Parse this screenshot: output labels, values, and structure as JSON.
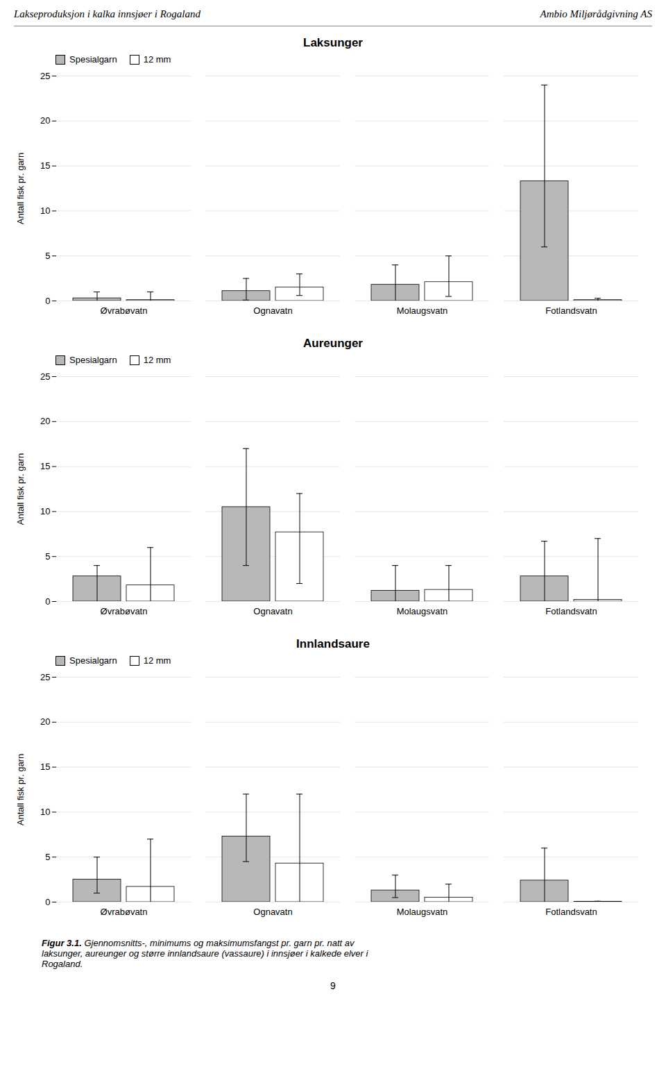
{
  "header_left": "Lakseproduksjon i kalka innsjøer i Rogaland",
  "header_right": "Ambio Miljørådgivning AS",
  "chart_data": [
    {
      "type": "bar",
      "title": "Laksunger",
      "ylabel": "Antall fisk pr. garn",
      "categories": [
        "Øvrabøvatn",
        "Ognavatn",
        "Molaugsvatn",
        "Fotlandsvatn"
      ],
      "series": [
        {
          "name": "Spesialgarn",
          "color": "#b8b8b8",
          "values": [
            0.3,
            1.1,
            1.8,
            13.3
          ],
          "err_low": [
            0.3,
            1.0,
            1.8,
            7.3
          ],
          "err_high": [
            0.7,
            1.4,
            2.2,
            10.7
          ]
        },
        {
          "name": "12 mm",
          "color": "#ffffff",
          "values": [
            0.1,
            1.5,
            2.1,
            0.1
          ],
          "err_low": [
            0.1,
            0.9,
            1.6,
            0.1
          ],
          "err_high": [
            0.9,
            1.5,
            2.9,
            0.2
          ]
        }
      ],
      "ylim": [
        0,
        25
      ],
      "yticks": [
        0,
        5,
        10,
        15,
        20,
        25
      ],
      "grid": true,
      "legend": "upper left"
    },
    {
      "type": "bar",
      "title": "Aureunger",
      "ylabel": "Antall fisk pr. garn",
      "categories": [
        "Øvrabøvatn",
        "Ognavatn",
        "Molaugsvatn",
        "Fotlandsvatn"
      ],
      "series": [
        {
          "name": "Spesialgarn",
          "color": "#b8b8b8",
          "values": [
            2.8,
            10.5,
            1.2,
            2.8
          ],
          "err_low": [
            2.8,
            6.5,
            1.2,
            2.8
          ],
          "err_high": [
            1.2,
            6.5,
            2.8,
            3.9
          ]
        },
        {
          "name": "12 mm",
          "color": "#ffffff",
          "values": [
            1.8,
            7.7,
            1.3,
            0.2
          ],
          "err_low": [
            1.8,
            5.7,
            1.3,
            0.2
          ],
          "err_high": [
            4.2,
            4.3,
            2.7,
            6.8
          ]
        }
      ],
      "ylim": [
        0,
        25
      ],
      "yticks": [
        0,
        5,
        10,
        15,
        20,
        25
      ],
      "grid": true,
      "legend": "upper left"
    },
    {
      "type": "bar",
      "title": "Innlandsaure",
      "ylabel": "Antall fisk pr. garn",
      "categories": [
        "Øvrabøvatn",
        "Ognavatn",
        "Molaugsvatn",
        "Fotlandsvatn"
      ],
      "series": [
        {
          "name": "Spesialgarn",
          "color": "#b8b8b8",
          "values": [
            2.5,
            7.3,
            1.3,
            2.4
          ],
          "err_low": [
            1.5,
            2.8,
            0.8,
            2.4
          ],
          "err_high": [
            2.5,
            4.7,
            1.7,
            3.6
          ]
        },
        {
          "name": "12 mm",
          "color": "#ffffff",
          "values": [
            1.7,
            4.3,
            0.5,
            0.05
          ],
          "err_low": [
            1.7,
            4.3,
            0.5,
            0.05
          ],
          "err_high": [
            5.3,
            7.7,
            1.5,
            0.05
          ]
        }
      ],
      "ylim": [
        0,
        25
      ],
      "yticks": [
        0,
        5,
        10,
        15,
        20,
        25
      ],
      "grid": true,
      "legend": "upper left"
    }
  ],
  "caption_bold": "Figur 3.1.",
  "caption_rest": " Gjennomsnitts-, minimums og maksimumsfangst pr. garn pr. natt av\nlaksunger, aureunger og større innlandsaure (vassaure) i innsjøer i kalkede elver i\nRogaland.",
  "page_number": "9"
}
